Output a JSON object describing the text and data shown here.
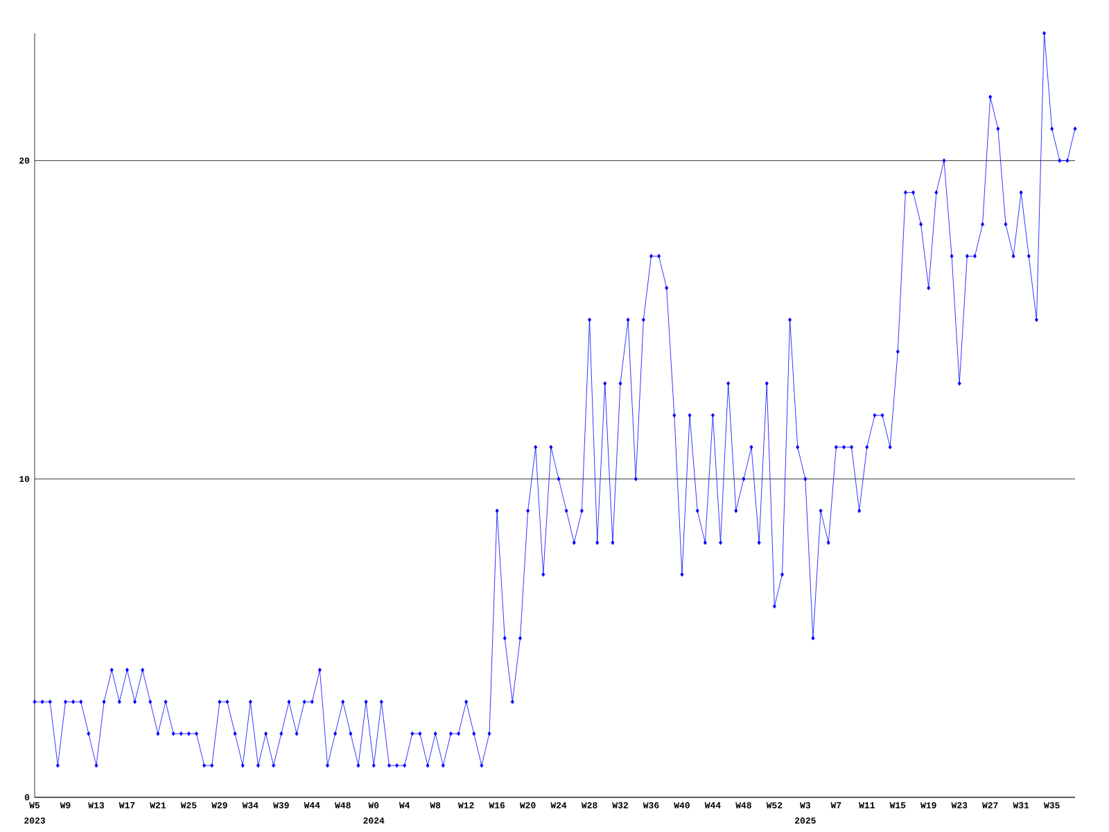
{
  "chart_data": {
    "type": "line",
    "categories": [
      "W5",
      null,
      null,
      null,
      "W9",
      null,
      null,
      null,
      "W13",
      null,
      null,
      null,
      "W17",
      null,
      null,
      null,
      "W21",
      null,
      null,
      null,
      "W25",
      null,
      null,
      null,
      "W29",
      null,
      null,
      null,
      "W34",
      null,
      null,
      null,
      "W39",
      null,
      null,
      null,
      "W44",
      null,
      null,
      null,
      "W48",
      null,
      null,
      null,
      "W0",
      null,
      null,
      null,
      "W4",
      null,
      null,
      null,
      "W8",
      null,
      null,
      null,
      "W12",
      null,
      null,
      null,
      "W16",
      null,
      null,
      null,
      "W20",
      null,
      null,
      null,
      "W24",
      null,
      null,
      null,
      "W28",
      null,
      null,
      null,
      "W32",
      null,
      null,
      null,
      "W36",
      null,
      null,
      null,
      "W40",
      null,
      null,
      null,
      "W44",
      null,
      null,
      null,
      "W48",
      null,
      null,
      null,
      "W52",
      null,
      null,
      null,
      "W3",
      null,
      null,
      null,
      "W7",
      null,
      null,
      null,
      "W11",
      null,
      null,
      null,
      "W15",
      null,
      null,
      null,
      "W19",
      null,
      null,
      null,
      "W23",
      null,
      null,
      null,
      "W27",
      null,
      null,
      null,
      "W31",
      null,
      null,
      null,
      "W35",
      null,
      null,
      null
    ],
    "series": [
      {
        "color": "#0000ff",
        "values": [
          3,
          3,
          3,
          1,
          3,
          3,
          3,
          2,
          1,
          3,
          4,
          3,
          4,
          3,
          4,
          3,
          2,
          3,
          2,
          2,
          2,
          2,
          1,
          1,
          3,
          3,
          2,
          1,
          3,
          1,
          2,
          1,
          2,
          3,
          2,
          3,
          3,
          4,
          1,
          2,
          3,
          2,
          1,
          3,
          1,
          3,
          1,
          1,
          1,
          2,
          2,
          1,
          2,
          1,
          2,
          2,
          3,
          2,
          1,
          2,
          9,
          5,
          3,
          5,
          9,
          11,
          7,
          11,
          10,
          9,
          8,
          9,
          15,
          8,
          13,
          8,
          13,
          15,
          10,
          15,
          17,
          17,
          16,
          12,
          7,
          12,
          9,
          8,
          12,
          8,
          13,
          9,
          10,
          11,
          8,
          13,
          6,
          7,
          15,
          11,
          10,
          5,
          9,
          8,
          11,
          11,
          11,
          9,
          11,
          12,
          12,
          11,
          14,
          19,
          19,
          18,
          16,
          19,
          20,
          17,
          13,
          17,
          17,
          18,
          22,
          21,
          18,
          17,
          19,
          17,
          15,
          24,
          21,
          20,
          20,
          21
        ]
      }
    ],
    "ylim": [
      0,
      24
    ],
    "yticks": [
      0,
      10,
      20
    ],
    "grid": "y",
    "marker": "diamond",
    "line_style": "solid",
    "annotations": [
      "2023",
      "2024",
      "2025"
    ]
  }
}
